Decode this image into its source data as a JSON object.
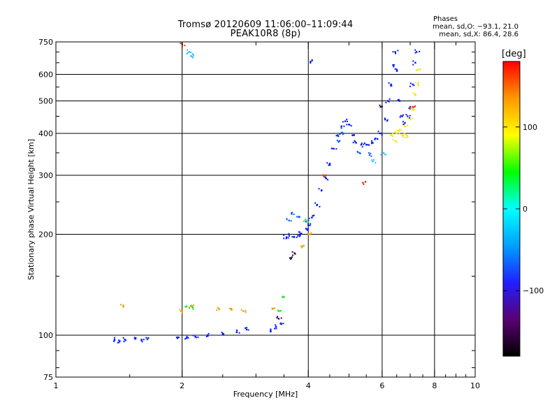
{
  "chart_data": {
    "type": "scatter",
    "title": "Tromsø 20120609 11:06:00–11:09:44",
    "subtitle": "PEAK10R8 (8p)",
    "xlabel": "Frequency [MHz]",
    "ylabel": "Stationary phase Virtual Height [km]",
    "x_scale": "log",
    "y_scale": "log",
    "xlim": [
      1,
      10
    ],
    "ylim": [
      75,
      750
    ],
    "x_ticks": [
      1,
      2,
      4,
      6,
      8,
      10
    ],
    "x_tick_labels": [
      "1",
      "2",
      "4",
      "6",
      "8",
      "10"
    ],
    "y_ticks": [
      75,
      100,
      200,
      300,
      400,
      500,
      600,
      750
    ],
    "y_tick_labels": [
      "75",
      "100",
      "200",
      "300",
      "400",
      "500",
      "600",
      "750"
    ],
    "grid": true,
    "phase_stats": {
      "heading": "Phases",
      "o_line": "mean, sd,O: −93.1, 21.0",
      "x_line": "mean, sd,X: 86.4, 28.6"
    },
    "colorbar": {
      "label": "[deg]",
      "range": [
        -180,
        180
      ],
      "ticks": [
        100,
        0,
        -100
      ],
      "tick_labels": [
        "100",
        "0",
        "−100"
      ],
      "colors": [
        "#000000",
        "#5a0073",
        "#2020ff",
        "#00a0ff",
        "#00ffff",
        "#00ff00",
        "#ffff00",
        "#ff9900",
        "#ff0000"
      ]
    },
    "series": [
      {
        "color": "#0018ff",
        "phase": -100,
        "points": [
          [
            1.38,
            97
          ],
          [
            1.42,
            96
          ],
          [
            1.46,
            97
          ],
          [
            1.55,
            98
          ],
          [
            1.6,
            97
          ],
          [
            1.66,
            98
          ],
          [
            1.95,
            98
          ],
          [
            2.05,
            98
          ],
          [
            2.15,
            99
          ],
          [
            2.3,
            100
          ],
          [
            2.5,
            101
          ],
          [
            2.7,
            102
          ],
          [
            2.85,
            104
          ],
          [
            3.25,
            103
          ],
          [
            3.35,
            106
          ],
          [
            3.45,
            108
          ],
          [
            3.55,
            196
          ],
          [
            3.6,
            198
          ],
          [
            3.7,
            196
          ],
          [
            3.78,
            198
          ],
          [
            3.85,
            201
          ],
          [
            3.95,
            208
          ],
          [
            4.0,
            213
          ],
          [
            4.1,
            227
          ],
          [
            4.2,
            245
          ],
          [
            4.3,
            270
          ],
          [
            4.4,
            295
          ],
          [
            4.5,
            325
          ],
          [
            4.6,
            360
          ],
          [
            4.7,
            395
          ],
          [
            4.8,
            420
          ],
          [
            4.9,
            435
          ],
          [
            5.0,
            425
          ],
          [
            5.1,
            395
          ],
          [
            5.2,
            375
          ],
          [
            5.35,
            370
          ],
          [
            5.5,
            370
          ],
          [
            5.7,
            375
          ],
          [
            5.85,
            385
          ],
          [
            5.95,
            400
          ],
          [
            6.1,
            440
          ],
          [
            6.2,
            500
          ],
          [
            6.3,
            560
          ],
          [
            6.38,
            640
          ],
          [
            6.45,
            700
          ],
          [
            6.5,
            620
          ],
          [
            6.6,
            500
          ],
          [
            6.7,
            450
          ],
          [
            6.8,
            430
          ],
          [
            6.9,
            450
          ],
          [
            7.0,
            480
          ],
          [
            7.1,
            560
          ],
          [
            7.2,
            650
          ],
          [
            7.25,
            700
          ],
          [
            4.05,
            655
          ]
        ]
      },
      {
        "color": "#1060ff",
        "phase": -80,
        "points": [
          [
            3.65,
            230
          ],
          [
            3.6,
            220
          ],
          [
            4.0,
            220
          ],
          [
            3.8,
            225
          ],
          [
            4.75,
            380
          ],
          [
            4.85,
            400
          ],
          [
            5.3,
            350
          ],
          [
            5.6,
            345
          ]
        ]
      },
      {
        "color": "#f0e800",
        "phase": 100,
        "points": [
          [
            6.5,
            400
          ],
          [
            6.6,
            410
          ],
          [
            6.7,
            395
          ],
          [
            6.8,
            420
          ],
          [
            6.9,
            390
          ],
          [
            7.0,
            440
          ],
          [
            7.1,
            470
          ],
          [
            7.2,
            520
          ],
          [
            7.3,
            560
          ],
          [
            7.3,
            620
          ],
          [
            6.3,
            395
          ],
          [
            6.45,
            380
          ]
        ]
      },
      {
        "color": "#f0a000",
        "phase": 130,
        "points": [
          [
            1.45,
            122
          ],
          [
            2.0,
            118
          ],
          [
            2.1,
            122
          ],
          [
            2.45,
            120
          ],
          [
            2.62,
            120
          ],
          [
            2.8,
            118
          ],
          [
            3.3,
            120
          ],
          [
            3.9,
            185
          ],
          [
            4.05,
            200
          ]
        ]
      },
      {
        "color": "#33dd33",
        "phase": 10,
        "points": [
          [
            2.05,
            122
          ],
          [
            2.12,
            121
          ],
          [
            3.4,
            118
          ],
          [
            3.5,
            130
          ],
          [
            3.95,
            220
          ]
        ]
      },
      {
        "color": "#30c0ff",
        "phase": -40,
        "points": [
          [
            2.08,
            700
          ],
          [
            2.12,
            690
          ],
          [
            2.1,
            680
          ],
          [
            5.7,
            330
          ],
          [
            6.05,
            350
          ]
        ]
      },
      {
        "color": "#ff2020",
        "phase": 170,
        "points": [
          [
            2.0,
            740
          ],
          [
            5.4,
            285
          ],
          [
            7.1,
            480
          ],
          [
            4.4,
            300
          ]
        ]
      },
      {
        "color": "#300050",
        "phase": -160,
        "points": [
          [
            3.62,
            170
          ],
          [
            3.72,
            175
          ],
          [
            3.4,
            112
          ],
          [
            5.95,
            480
          ]
        ]
      }
    ]
  }
}
